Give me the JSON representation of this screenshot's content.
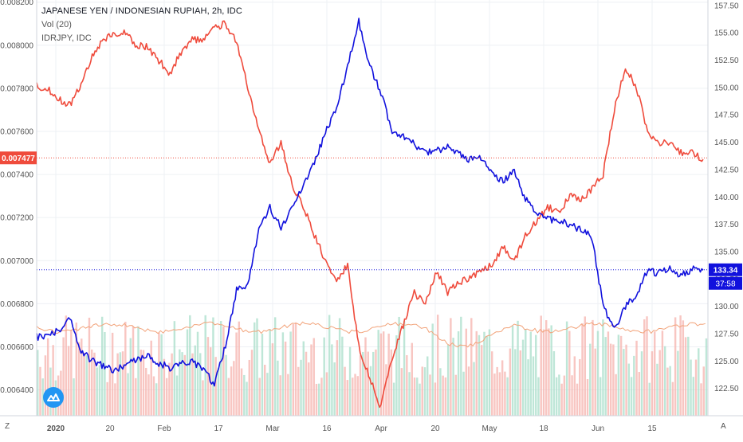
{
  "legend": {
    "title": "JAPANESE YEN / INDONESIAN RUPIAH, 2h, IDC",
    "volume": "Vol (20)",
    "compare": "IDRJPY, IDC"
  },
  "corner": {
    "left": "Z",
    "right": "A"
  },
  "colors": {
    "main": "#ef4b3c",
    "compare": "#1111dd",
    "up_vol": "#a8ddc9",
    "down_vol": "#f5b3ad",
    "ma": "#f2a37a"
  },
  "price_badges": {
    "main": {
      "value": "0.007477",
      "color": "#ef4b3c"
    },
    "compare": {
      "value": "133.34",
      "color": "#1111dd"
    },
    "countdown": {
      "value": "37:58",
      "color": "#1111dd"
    }
  },
  "chart_data": {
    "type": "line",
    "left_axis": {
      "ticks": [
        "0.008200",
        "0.008000",
        "0.007800",
        "0.007600",
        "0.007400",
        "0.007200",
        "0.007000",
        "0.006800",
        "0.006600",
        "0.006400"
      ],
      "range": [
        0.00628,
        0.00821
      ]
    },
    "right_axis": {
      "ticks": [
        "157.50",
        "155.00",
        "152.50",
        "150.00",
        "147.50",
        "145.00",
        "142.50",
        "140.00",
        "137.50",
        "135.00",
        "132.50",
        "130.00",
        "127.50",
        "125.00",
        "122.50"
      ],
      "range": [
        120.0,
        158.0
      ]
    },
    "x_labels": [
      "2020",
      "20",
      "Feb",
      "17",
      "Mar",
      "16",
      "Apr",
      "20",
      "May",
      "18",
      "Jun",
      "15"
    ],
    "series": [
      {
        "name": "JAPANESE YEN / INDONESIAN RUPIAH",
        "axis": "left",
        "color": "#ef4b3c",
        "values": [
          0.00781,
          0.0078,
          0.00775,
          0.00772,
          0.00782,
          0.00795,
          0.00803,
          0.00805,
          0.00806,
          0.008,
          0.00799,
          0.00793,
          0.00787,
          0.00797,
          0.00803,
          0.00802,
          0.00808,
          0.0081,
          0.00802,
          0.0078,
          0.0076,
          0.00745,
          0.00755,
          0.00735,
          0.00725,
          0.00712,
          0.007,
          0.0069,
          0.00698,
          0.0066,
          0.00645,
          0.00632,
          0.00655,
          0.0067,
          0.00685,
          0.0068,
          0.00695,
          0.00685,
          0.0069,
          0.00692,
          0.00695,
          0.00698,
          0.00706,
          0.007,
          0.00712,
          0.00718,
          0.00725,
          0.00722,
          0.0073,
          0.00728,
          0.00733,
          0.0074,
          0.0077,
          0.0079,
          0.0078,
          0.0076,
          0.00755,
          0.00755,
          0.0075,
          0.0075,
          0.00747
        ]
      },
      {
        "name": "IDRJPY, IDC",
        "axis": "right",
        "color": "#1111dd",
        "values": [
          127.2,
          127.4,
          127.8,
          128.8,
          126.0,
          125.0,
          124.5,
          124.2,
          124.6,
          125.1,
          125.6,
          124.8,
          124.4,
          124.8,
          125.0,
          124.3,
          122.8,
          126.5,
          131.5,
          132.0,
          137.0,
          139.0,
          137.2,
          139.0,
          141.0,
          143.0,
          146.0,
          148.0,
          152.0,
          156.0,
          152.0,
          149.5,
          146.0,
          145.5,
          144.8,
          144.0,
          144.3,
          144.5,
          144.0,
          143.4,
          143.5,
          142.0,
          141.5,
          142.3,
          139.8,
          138.5,
          138.0,
          137.8,
          137.5,
          137.0,
          136.3,
          130.0,
          127.8,
          130.0,
          131.0,
          133.3,
          133.0,
          133.4,
          132.8,
          133.4,
          133.3
        ]
      }
    ],
    "volume": {
      "name": "Vol (20)"
    }
  }
}
